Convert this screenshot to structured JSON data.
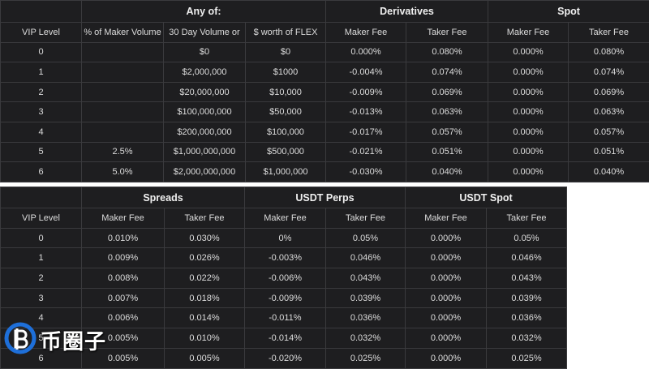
{
  "table1": {
    "groups": [
      "",
      "Any of:",
      "Derivatives",
      "Spot"
    ],
    "headers": [
      "VIP Level",
      "% of Maker Volume",
      "30 Day Volume or",
      "$ worth of FLEX",
      "Maker Fee",
      "Taker Fee",
      "Maker Fee",
      "Taker Fee"
    ],
    "rows": [
      [
        "0",
        "",
        "$0",
        "$0",
        "0.000%",
        "0.080%",
        "0.000%",
        "0.080%"
      ],
      [
        "1",
        "",
        "$2,000,000",
        "$1000",
        "-0.004%",
        "0.074%",
        "0.000%",
        "0.074%"
      ],
      [
        "2",
        "",
        "$20,000,000",
        "$10,000",
        "-0.009%",
        "0.069%",
        "0.000%",
        "0.069%"
      ],
      [
        "3",
        "",
        "$100,000,000",
        "$50,000",
        "-0.013%",
        "0.063%",
        "0.000%",
        "0.063%"
      ],
      [
        "4",
        "",
        "$200,000,000",
        "$100,000",
        "-0.017%",
        "0.057%",
        "0.000%",
        "0.057%"
      ],
      [
        "5",
        "2.5%",
        "$1,000,000,000",
        "$500,000",
        "-0.021%",
        "0.051%",
        "0.000%",
        "0.051%"
      ],
      [
        "6",
        "5.0%",
        "$2,000,000,000",
        "$1,000,000",
        "-0.030%",
        "0.040%",
        "0.000%",
        "0.040%"
      ]
    ]
  },
  "table2": {
    "groups": [
      "",
      "Spreads",
      "USDT Perps",
      "USDT Spot"
    ],
    "headers": [
      "VIP Level",
      "Maker Fee",
      "Taker Fee",
      "Maker Fee",
      "Taker Fee",
      "Maker Fee",
      "Taker Fee"
    ],
    "rows": [
      [
        "0",
        "0.010%",
        "0.030%",
        "0%",
        "0.05%",
        "0.000%",
        "0.05%"
      ],
      [
        "1",
        "0.009%",
        "0.026%",
        "-0.003%",
        "0.046%",
        "0.000%",
        "0.046%"
      ],
      [
        "2",
        "0.008%",
        "0.022%",
        "-0.006%",
        "0.043%",
        "0.000%",
        "0.043%"
      ],
      [
        "3",
        "0.007%",
        "0.018%",
        "-0.009%",
        "0.039%",
        "0.000%",
        "0.039%"
      ],
      [
        "4",
        "0.006%",
        "0.014%",
        "-0.011%",
        "0.036%",
        "0.000%",
        "0.036%"
      ],
      [
        "5",
        "0.005%",
        "0.010%",
        "-0.014%",
        "0.032%",
        "0.000%",
        "0.032%"
      ],
      [
        "6",
        "0.005%",
        "0.005%",
        "-0.020%",
        "0.025%",
        "0.000%",
        "0.025%"
      ]
    ]
  },
  "watermark": {
    "text": "币圈子",
    "logo_icon": "bitcoin-circle-logo-icon",
    "color": "#1e6fd9"
  }
}
